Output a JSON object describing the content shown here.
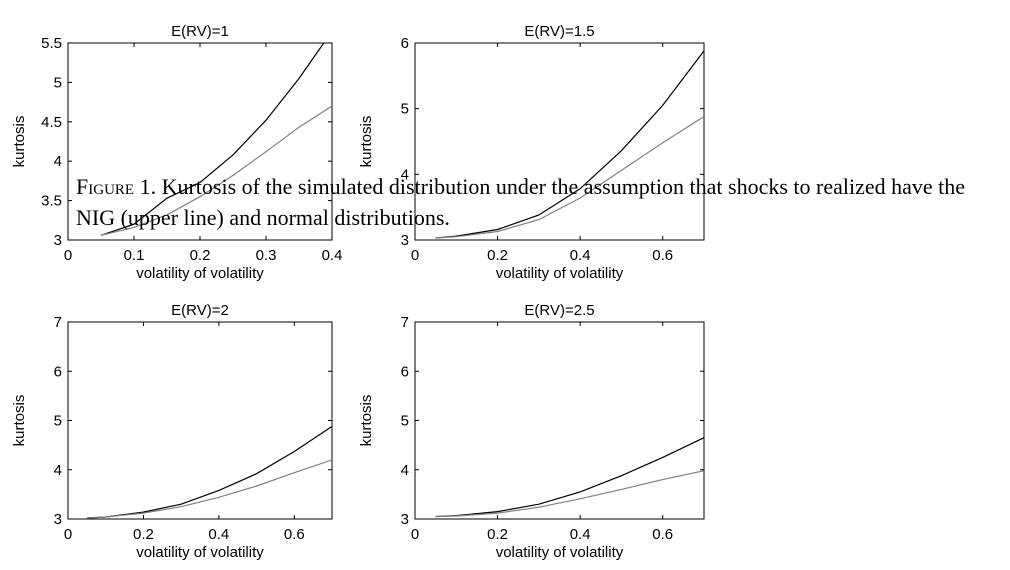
{
  "caption": {
    "lead": "Figure 1.",
    "text": "Kurtosis of the simulated distribution under the assumption that shocks to realized have the NIG (upper line) and normal distributions."
  },
  "colors": {
    "axes": "#000000",
    "nig_line": "#000000",
    "normal_line": "#808080"
  },
  "chart_data": [
    {
      "type": "line",
      "title": "E(RV)=1",
      "xlabel": "volatility of volatility",
      "ylabel": "kurtosis",
      "xlim": [
        0,
        0.4
      ],
      "ylim": [
        3,
        5.5
      ],
      "xticks": [
        0,
        0.1,
        0.2,
        0.3,
        0.4
      ],
      "xtick_labels": [
        "0",
        "0.1",
        "0.2",
        "0.3",
        "0.4"
      ],
      "yticks": [
        3,
        3.5,
        4,
        4.5,
        5,
        5.5
      ],
      "ytick_labels": [
        "3",
        "3.5",
        "4",
        "4.5",
        "5",
        "5.5"
      ],
      "grid": false,
      "series": [
        {
          "color": "#000000",
          "x": [
            0.05,
            0.1,
            0.15,
            0.2,
            0.25,
            0.3,
            0.35,
            0.4
          ],
          "y": [
            3.06,
            3.2,
            3.53,
            3.73,
            4.08,
            4.52,
            5.05,
            5.65
          ]
        },
        {
          "color": "#808080",
          "x": [
            0.05,
            0.1,
            0.15,
            0.2,
            0.25,
            0.3,
            0.35,
            0.4
          ],
          "y": [
            3.06,
            3.16,
            3.32,
            3.55,
            3.82,
            4.12,
            4.43,
            4.7
          ]
        }
      ]
    },
    {
      "type": "line",
      "title": "E(RV)=1.5",
      "xlabel": "volatility of volatility",
      "ylabel": "kurtosis",
      "xlim": [
        0,
        0.7
      ],
      "ylim": [
        3,
        6
      ],
      "xticks": [
        0,
        0.2,
        0.4,
        0.6
      ],
      "xtick_labels": [
        "0",
        "0.2",
        "0.4",
        "0.6"
      ],
      "yticks": [
        3,
        4,
        5,
        6
      ],
      "ytick_labels": [
        "3",
        "4",
        "5",
        "6"
      ],
      "grid": false,
      "series": [
        {
          "color": "#000000",
          "x": [
            0.05,
            0.1,
            0.2,
            0.3,
            0.4,
            0.5,
            0.6,
            0.7
          ],
          "y": [
            3.03,
            3.06,
            3.16,
            3.38,
            3.78,
            4.36,
            5.05,
            5.88
          ]
        },
        {
          "color": "#808080",
          "x": [
            0.05,
            0.1,
            0.2,
            0.3,
            0.4,
            0.5,
            0.6,
            0.7
          ],
          "y": [
            3.03,
            3.05,
            3.13,
            3.31,
            3.64,
            4.06,
            4.48,
            4.88
          ]
        }
      ]
    },
    {
      "type": "line",
      "title": "E(RV)=2",
      "xlabel": "volatility of volatility",
      "ylabel": "kurtosis",
      "xlim": [
        0,
        0.7
      ],
      "ylim": [
        3,
        7
      ],
      "xticks": [
        0,
        0.2,
        0.4,
        0.6
      ],
      "xtick_labels": [
        "0",
        "0.2",
        "0.4",
        "0.6"
      ],
      "yticks": [
        3,
        4,
        5,
        6,
        7
      ],
      "ytick_labels": [
        "3",
        "4",
        "5",
        "6",
        "7"
      ],
      "grid": false,
      "series": [
        {
          "color": "#000000",
          "x": [
            0.05,
            0.1,
            0.2,
            0.3,
            0.4,
            0.5,
            0.6,
            0.7
          ],
          "y": [
            3.02,
            3.04,
            3.14,
            3.3,
            3.58,
            3.92,
            4.37,
            4.88
          ]
        },
        {
          "color": "#808080",
          "x": [
            0.05,
            0.1,
            0.2,
            0.3,
            0.4,
            0.5,
            0.6,
            0.7
          ],
          "y": [
            3.02,
            3.04,
            3.12,
            3.25,
            3.44,
            3.67,
            3.94,
            4.2
          ]
        }
      ]
    },
    {
      "type": "line",
      "title": "E(RV)=2.5",
      "xlabel": "volatility of volatility",
      "ylabel": "kurtosis",
      "xlim": [
        0,
        0.7
      ],
      "ylim": [
        3,
        7
      ],
      "xticks": [
        0,
        0.2,
        0.4,
        0.6
      ],
      "xtick_labels": [
        "0",
        "0.2",
        "0.4",
        "0.6"
      ],
      "yticks": [
        3,
        4,
        5,
        6,
        7
      ],
      "ytick_labels": [
        "3",
        "4",
        "5",
        "6",
        "7"
      ],
      "grid": false,
      "series": [
        {
          "color": "#000000",
          "x": [
            0.05,
            0.1,
            0.2,
            0.3,
            0.4,
            0.5,
            0.6,
            0.7
          ],
          "y": [
            3.05,
            3.07,
            3.15,
            3.3,
            3.55,
            3.88,
            4.25,
            4.65
          ]
        },
        {
          "color": "#808080",
          "x": [
            0.05,
            0.1,
            0.2,
            0.3,
            0.4,
            0.5,
            0.6,
            0.7
          ],
          "y": [
            3.05,
            3.06,
            3.12,
            3.24,
            3.41,
            3.6,
            3.8,
            3.98
          ]
        }
      ]
    }
  ]
}
